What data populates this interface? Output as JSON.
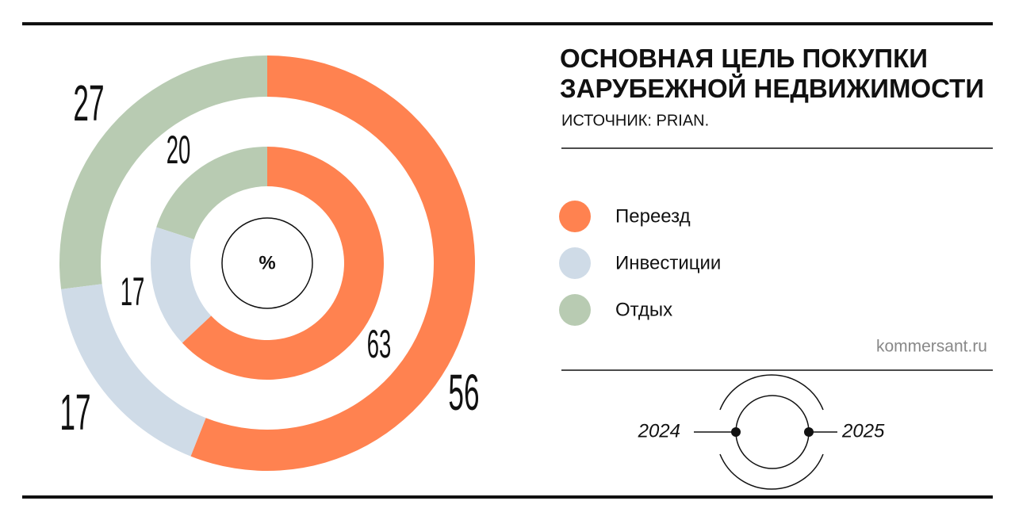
{
  "chart_data": {
    "type": "donut",
    "title": "ОСНОВНАЯ ЦЕЛЬ ПОКУПКИ ЗАРУБЕЖНОЙ НЕДВИЖИМОСТИ",
    "subtitle": "ИСТОЧНИК: PRIAN.",
    "center_label": "%",
    "source": "kommersant.ru",
    "categories": [
      "Переезд",
      "Инвестиции",
      "Отдых"
    ],
    "colors": [
      "#ff8250",
      "#cfdbe7",
      "#b8cbb2"
    ],
    "series": [
      {
        "name": "2024",
        "values": [
          56,
          17,
          27
        ]
      },
      {
        "name": "2025",
        "values": [
          63,
          17,
          20
        ]
      }
    ]
  }
}
